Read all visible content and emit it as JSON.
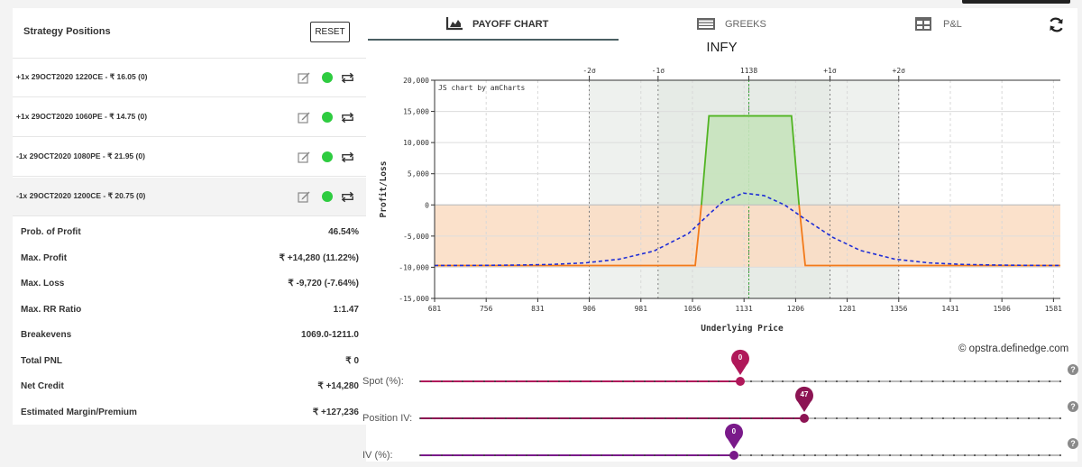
{
  "positions_panel": {
    "title": "Strategy Positions",
    "reset_label": "RESET",
    "positions": [
      {
        "label": "+1x  29OCT2020  1220CE  - ₹ 16.05  (0)",
        "active": true
      },
      {
        "label": "+1x  29OCT2020  1060PE  - ₹ 14.75  (0)",
        "active": true
      },
      {
        "label": "-1x  29OCT2020  1080PE  - ₹ 21.95  (0)",
        "active": true
      },
      {
        "label": "-1x  29OCT2020  1200CE  - ₹ 20.75  (0)",
        "active": true
      }
    ],
    "stats": [
      {
        "key": "Prob. of Profit",
        "value": "46.54%"
      },
      {
        "key": "Max. Profit",
        "value": "₹ +14,280 (11.22%)"
      },
      {
        "key": "Max. Loss",
        "value": "₹ -9,720 (-7.64%)"
      },
      {
        "key": "Max. RR Ratio",
        "value": "1:1.47"
      },
      {
        "key": "Breakevens",
        "value": "1069.0-1211.0"
      },
      {
        "key": "Total PNL",
        "value": "₹ 0"
      },
      {
        "key": "Net Credit",
        "value": "₹ +14,280"
      },
      {
        "key": "Estimated Margin/Premium",
        "value": "₹ +127,236"
      }
    ]
  },
  "tabs": [
    {
      "label": "PAYOFF CHART",
      "icon": "area-chart-icon",
      "active": true
    },
    {
      "label": "GREEKS",
      "icon": "table-list-icon",
      "active": false
    },
    {
      "label": "P&L",
      "icon": "grid-table-icon",
      "active": false
    }
  ],
  "chart_title": "INFY",
  "credit": "© opstra.definedge.com",
  "sliders": [
    {
      "label": "Spot (%):",
      "value": "0",
      "color": "#b0185a",
      "fraction": 0.5
    },
    {
      "label": "Position IV:",
      "value": "47",
      "color": "#8c1453",
      "fraction": 0.6
    },
    {
      "label": "IV (%):",
      "value": "0",
      "color": "#7a1a8a",
      "fraction": 0.49
    }
  ],
  "colors": {
    "profit_fill": "#c6e3bd",
    "profit_line": "#51b422",
    "loss_fill": "#fadcc2",
    "loss_line": "#f27a1a",
    "expected_line": "#1f2ed6",
    "sigma_band": "#e6ebe6",
    "active_dot": "#2ecc40"
  },
  "chart_data": {
    "type": "line",
    "xlabel": "Underlying Price",
    "ylabel": "Profit/Loss",
    "watermark": "JS chart by amCharts",
    "xlim": [
      681,
      1591
    ],
    "ylim": [
      -15000,
      20000
    ],
    "xticks": [
      681,
      756,
      831,
      906,
      981,
      1056,
      1131,
      1206,
      1281,
      1356,
      1431,
      1506,
      1581
    ],
    "yticks": [
      -15000,
      -10000,
      -5000,
      0,
      5000,
      10000,
      15000,
      20000
    ],
    "ytick_labels": [
      "-15,000",
      "-10,000",
      "-5,000",
      "0",
      "5,000",
      "10,000",
      "15,000",
      "20,000"
    ],
    "top_axis": [
      {
        "x": 906,
        "label": "-2σ"
      },
      {
        "x": 1006,
        "label": "-1σ"
      },
      {
        "x": 1138,
        "label": "1138"
      },
      {
        "x": 1256,
        "label": "+1σ"
      },
      {
        "x": 1356,
        "label": "+2σ"
      }
    ],
    "sigma_bands": [
      [
        906,
        1356
      ],
      [
        1006,
        1256
      ]
    ],
    "spot": 1138,
    "series": [
      {
        "name": "Expiry payoff",
        "x": [
          681,
          1060,
          1080,
          1200,
          1220,
          1591
        ],
        "y": [
          -9720,
          -9720,
          14280,
          14280,
          -9720,
          -9720
        ]
      },
      {
        "name": "Target payoff",
        "x": [
          681,
          750,
          800,
          850,
          900,
          950,
          1000,
          1050,
          1080,
          1100,
          1130,
          1160,
          1190,
          1220,
          1260,
          1300,
          1350,
          1400,
          1450,
          1500,
          1550,
          1591
        ],
        "y": [
          -9720,
          -9700,
          -9650,
          -9550,
          -9300,
          -8700,
          -7400,
          -4600,
          -1500,
          500,
          1900,
          1500,
          0,
          -2300,
          -5200,
          -7300,
          -8700,
          -9300,
          -9550,
          -9650,
          -9700,
          -9720
        ]
      }
    ]
  }
}
